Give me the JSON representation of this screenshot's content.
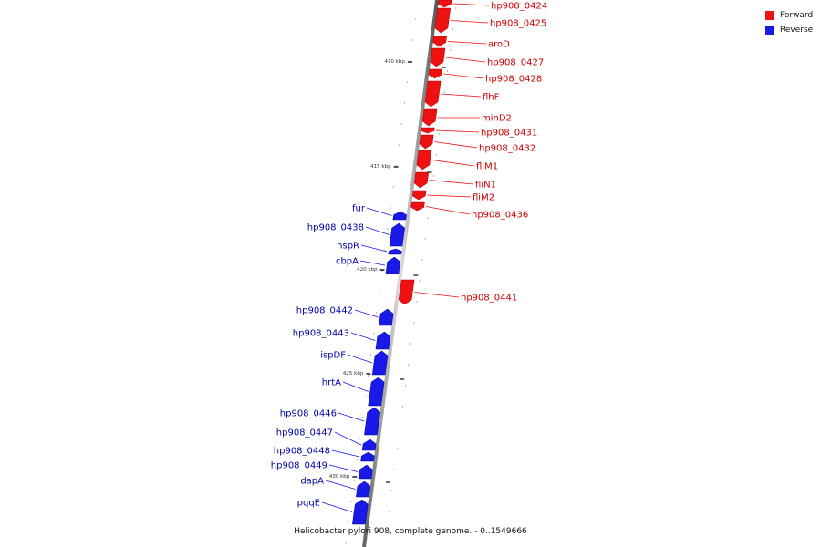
{
  "title": "Helicobacter pylori 908, complete genome. - 0..1549666",
  "legend": {
    "forward_label": "Forward",
    "reverse_label": "Reverse",
    "forward_color": "#ee1111",
    "reverse_color": "#1a1ae8"
  },
  "scale_marks": [
    {
      "label": "410 kbp",
      "kbp": 410
    },
    {
      "label": "415 kbp",
      "kbp": 415
    },
    {
      "label": "420 kbp",
      "kbp": 420
    },
    {
      "label": "425 kbp",
      "kbp": 425
    },
    {
      "label": "430 kbp",
      "kbp": 430
    }
  ],
  "genes": [
    {
      "name": "hp908_0424",
      "strand": "forward"
    },
    {
      "name": "hp908_0425",
      "strand": "forward"
    },
    {
      "name": "aroD",
      "strand": "forward"
    },
    {
      "name": "hp908_0427",
      "strand": "forward"
    },
    {
      "name": "hp908_0428",
      "strand": "forward"
    },
    {
      "name": "flhF",
      "strand": "forward"
    },
    {
      "name": "minD2",
      "strand": "forward"
    },
    {
      "name": "hp908_0431",
      "strand": "forward"
    },
    {
      "name": "hp908_0432",
      "strand": "forward"
    },
    {
      "name": "fliM1",
      "strand": "forward"
    },
    {
      "name": "fliN1",
      "strand": "forward"
    },
    {
      "name": "fliM2",
      "strand": "forward"
    },
    {
      "name": "hp908_0436",
      "strand": "forward"
    },
    {
      "name": "fur",
      "strand": "reverse"
    },
    {
      "name": "hp908_0438",
      "strand": "reverse"
    },
    {
      "name": "hspR",
      "strand": "reverse"
    },
    {
      "name": "cbpA",
      "strand": "reverse"
    },
    {
      "name": "hp908_0441",
      "strand": "forward"
    },
    {
      "name": "hp908_0442",
      "strand": "reverse"
    },
    {
      "name": "hp908_0443",
      "strand": "reverse"
    },
    {
      "name": "ispDF",
      "strand": "reverse"
    },
    {
      "name": "hrtA",
      "strand": "reverse"
    },
    {
      "name": "hp908_0446",
      "strand": "reverse"
    },
    {
      "name": "hp908_0447",
      "strand": "reverse"
    },
    {
      "name": "hp908_0448",
      "strand": "reverse"
    },
    {
      "name": "hp908_0449",
      "strand": "reverse"
    },
    {
      "name": "dapA",
      "strand": "reverse"
    },
    {
      "name": "pqqE",
      "strand": "reverse"
    }
  ]
}
